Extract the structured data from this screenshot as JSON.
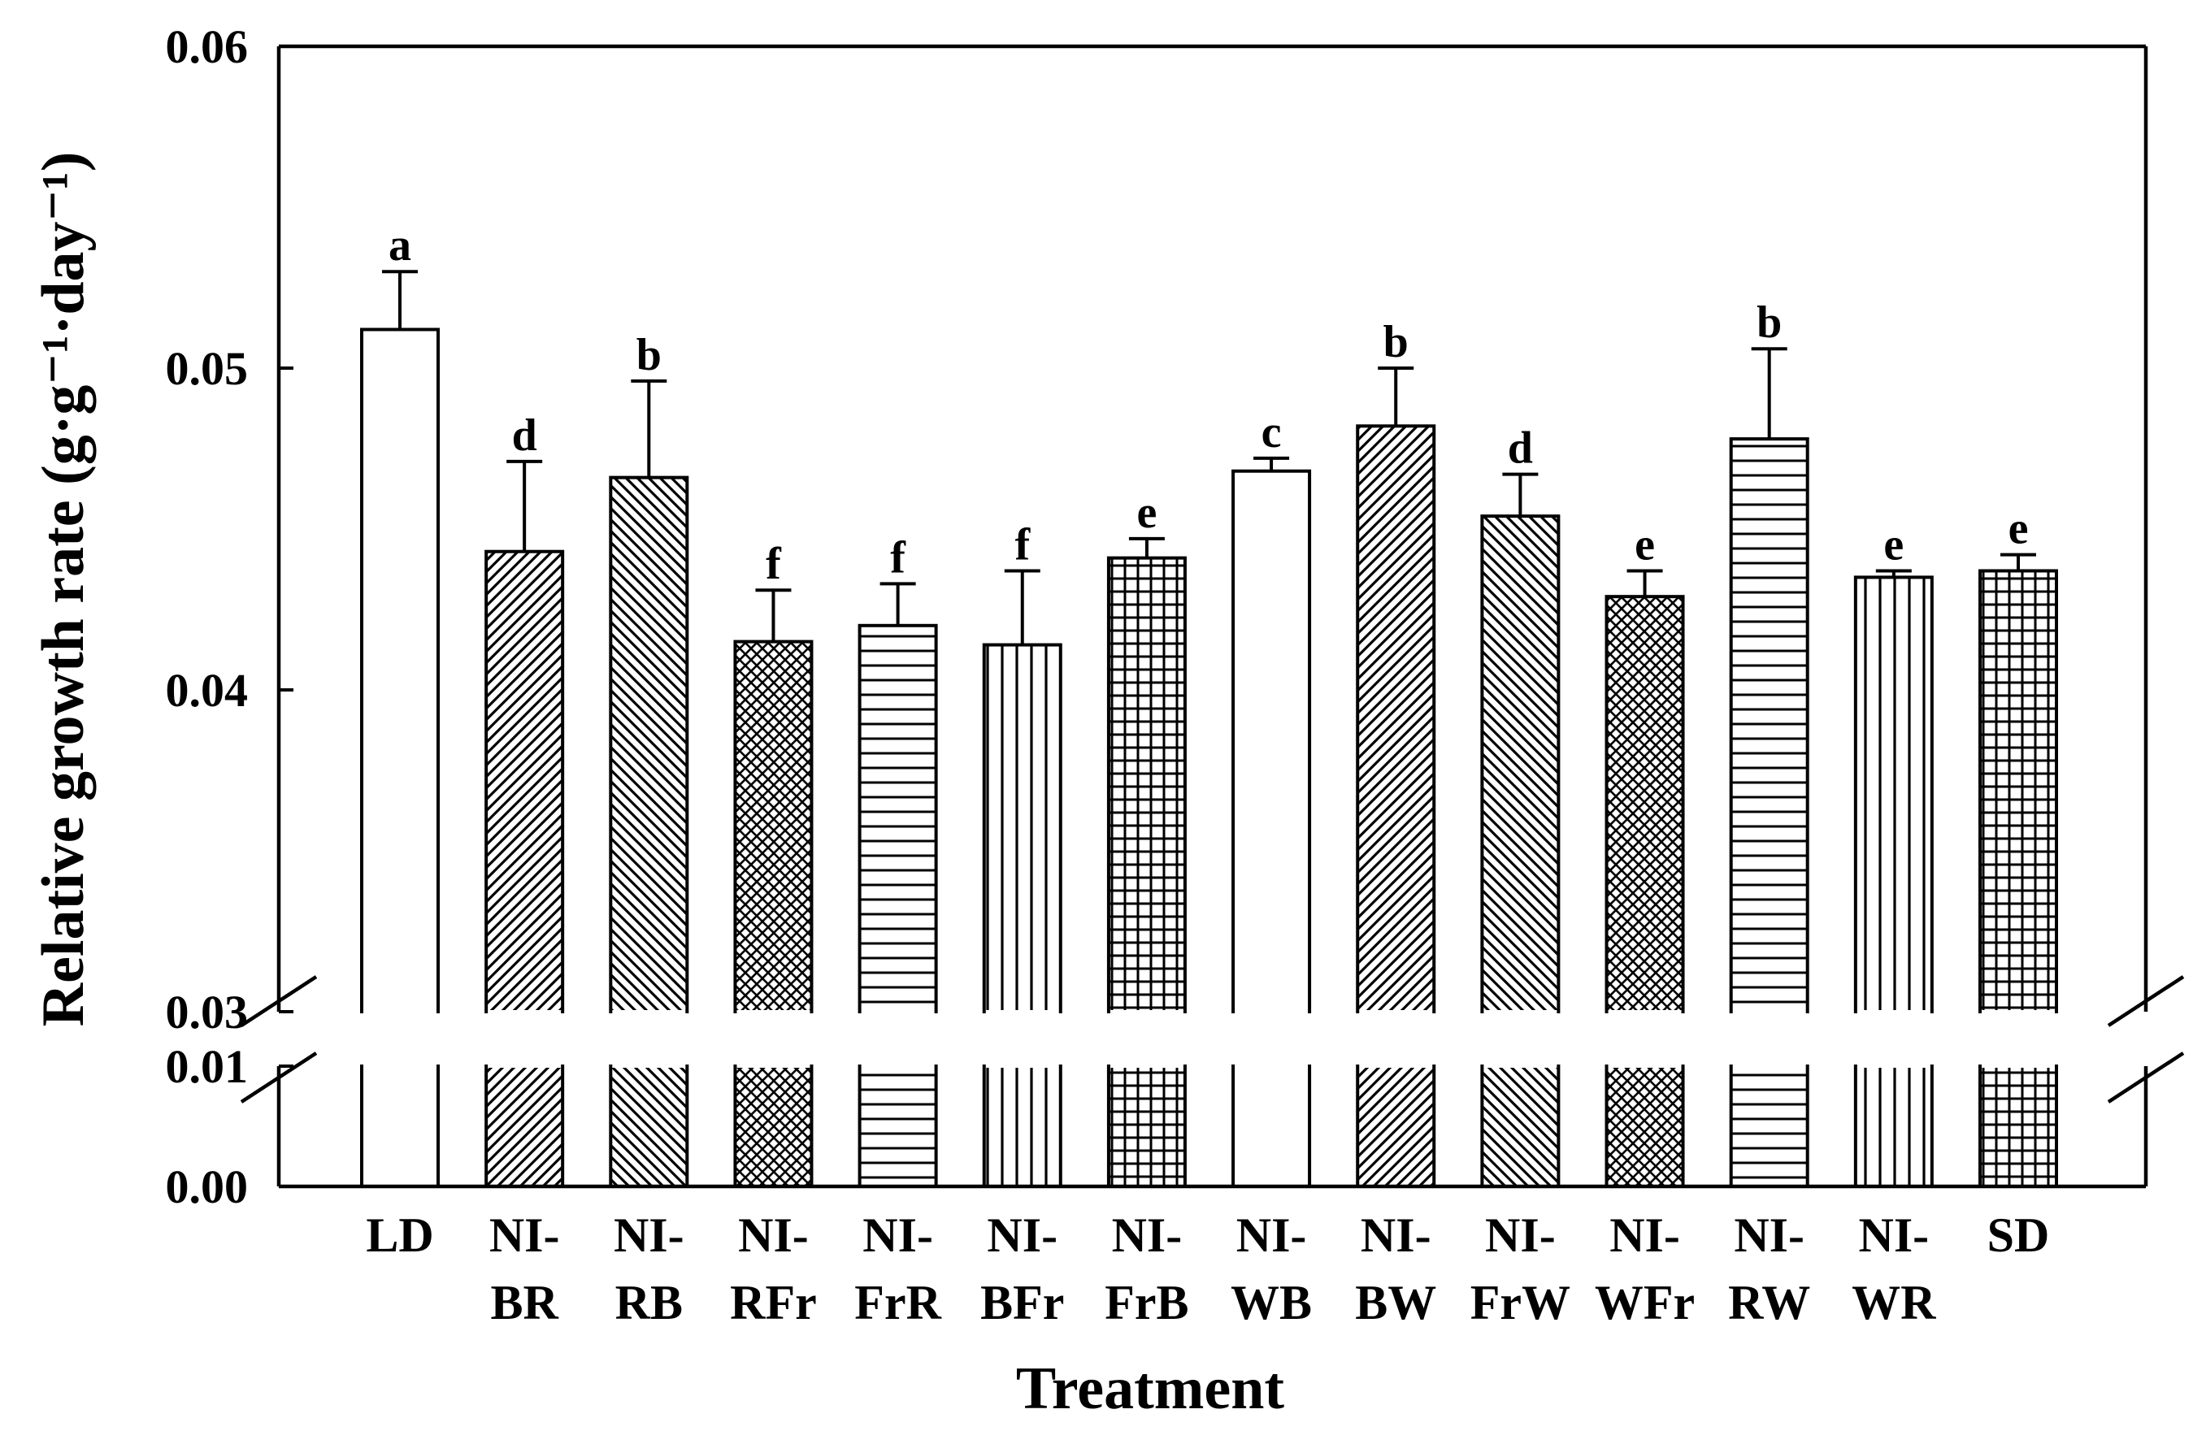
{
  "chart_data": {
    "type": "bar",
    "xlabel": "Treatment",
    "ylabel": "Relative growth rate (g·g⁻¹·day⁻¹)",
    "ylim_upper": [
      0.03,
      0.06
    ],
    "ylim_lower": [
      0.0,
      0.01
    ],
    "axis_break": true,
    "y_ticks_upper": [
      "0.03",
      "0.04",
      "0.05",
      "0.06"
    ],
    "y_ticks_lower": [
      "0.00",
      "0.01"
    ],
    "grid": false,
    "legend": "none",
    "categories": [
      {
        "line1": "LD",
        "line2": ""
      },
      {
        "line1": "NI-",
        "line2": "BR"
      },
      {
        "line1": "NI-",
        "line2": "RB"
      },
      {
        "line1": "NI-",
        "line2": "RFr"
      },
      {
        "line1": "NI-",
        "line2": "FrR"
      },
      {
        "line1": "NI-",
        "line2": "BFr"
      },
      {
        "line1": "NI-",
        "line2": "FrB"
      },
      {
        "line1": "NI-",
        "line2": "WB"
      },
      {
        "line1": "NI-",
        "line2": "BW"
      },
      {
        "line1": "NI-",
        "line2": "FrW"
      },
      {
        "line1": "NI-",
        "line2": "WFr"
      },
      {
        "line1": "NI-",
        "line2": "RW"
      },
      {
        "line1": "NI-",
        "line2": "WR"
      },
      {
        "line1": "SD",
        "line2": ""
      }
    ],
    "values": [
      0.0512,
      0.0443,
      0.0466,
      0.0415,
      0.042,
      0.0414,
      0.0441,
      0.0468,
      0.0482,
      0.0454,
      0.0429,
      0.0478,
      0.0435,
      0.0437
    ],
    "errors": [
      0.0018,
      0.0028,
      0.003,
      0.0016,
      0.0013,
      0.0023,
      0.0006,
      0.0004,
      0.0018,
      0.0013,
      0.0008,
      0.0028,
      0.0002,
      0.0005
    ],
    "significance": [
      "a",
      "d",
      "b",
      "f",
      "f",
      "f",
      "e",
      "c",
      "b",
      "d",
      "e",
      "b",
      "e",
      "e"
    ],
    "patterns": [
      "none",
      "diag-fwd",
      "diag-back",
      "crosshatch-diag",
      "horizontal",
      "vertical",
      "grid",
      "none",
      "diag-fwd",
      "diag-back",
      "crosshatch-diag",
      "horizontal",
      "vertical",
      "grid"
    ]
  }
}
